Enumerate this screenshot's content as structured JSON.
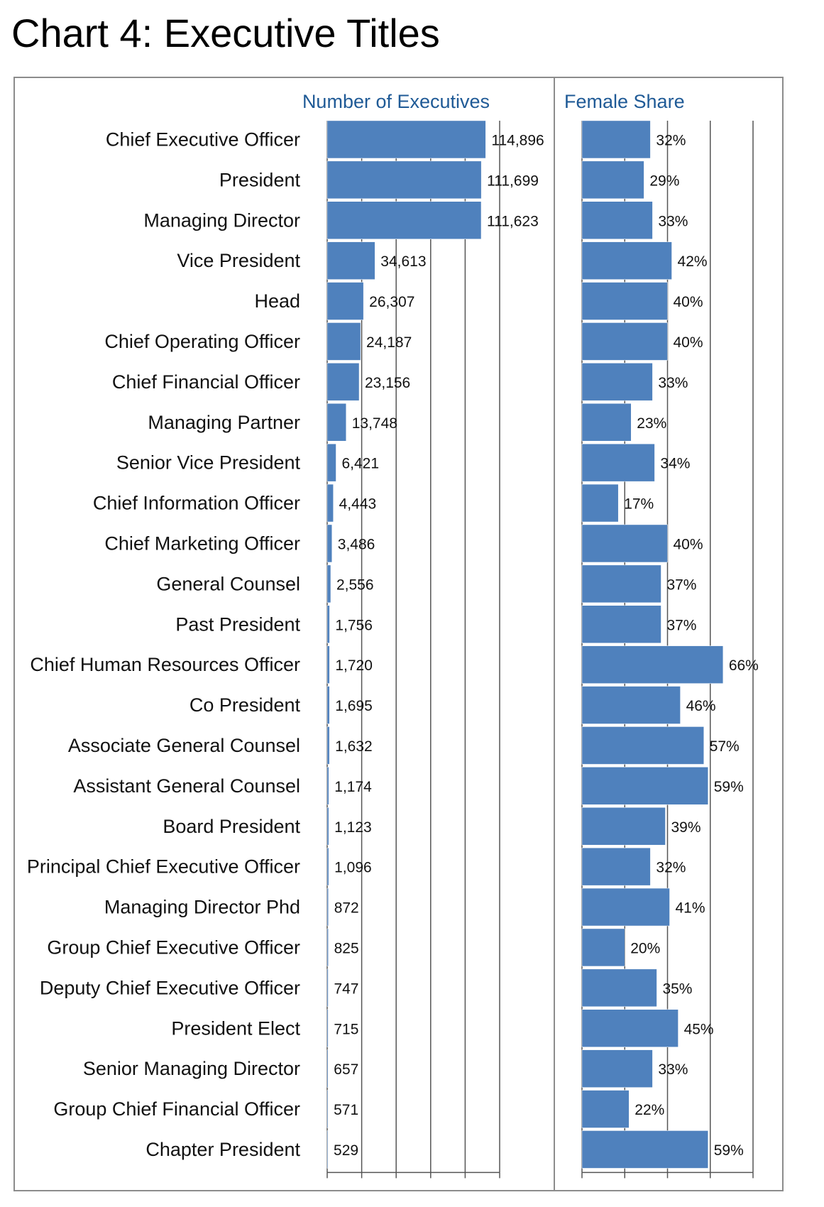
{
  "title": "Chart 4: Executive Titles",
  "chart_data": [
    {
      "type": "bar",
      "orientation": "horizontal",
      "title": "Number of Executives",
      "categories": [
        "Chief Executive Officer",
        "President",
        "Managing Director",
        "Vice President",
        "Head",
        "Chief Operating Officer",
        "Chief Financial Officer",
        "Managing Partner",
        "Senior Vice President",
        "Chief Information Officer",
        "Chief Marketing Officer",
        "General Counsel",
        "Past President",
        "Chief Human Resources Officer",
        "Co President",
        "Associate General Counsel",
        "Assistant General Counsel",
        "Board President",
        "Principal Chief Executive Officer",
        "Managing Director Phd",
        "Group Chief Executive Officer",
        "Deputy Chief Executive Officer",
        "President Elect",
        "Senior Managing Director",
        "Group Chief Financial Officer",
        "Chapter President"
      ],
      "values": [
        114896,
        111699,
        111623,
        34613,
        26307,
        24187,
        23156,
        13748,
        6421,
        4443,
        3486,
        2556,
        1756,
        1720,
        1695,
        1632,
        1174,
        1123,
        1096,
        872,
        825,
        747,
        715,
        657,
        571,
        529
      ],
      "value_labels": [
        "114,896",
        "111,699",
        "111,623",
        "34,613",
        "26,307",
        "24,187",
        "23,156",
        "13,748",
        "6,421",
        "4,443",
        "3,486",
        "2,556",
        "1,756",
        "1,720",
        "1,695",
        "1,632",
        "1,174",
        "1,123",
        "1,096",
        "872",
        "825",
        "747",
        "715",
        "657",
        "571",
        "529"
      ],
      "xlim": [
        0,
        125000
      ],
      "grid": true,
      "bar_color": "#4f81bd"
    },
    {
      "type": "bar",
      "orientation": "horizontal",
      "title": "Female Share",
      "values": [
        32,
        29,
        33,
        42,
        40,
        40,
        33,
        23,
        34,
        17,
        40,
        37,
        37,
        66,
        46,
        57,
        59,
        39,
        32,
        41,
        20,
        35,
        45,
        33,
        22,
        59
      ],
      "value_labels": [
        "32%",
        "29%",
        "33%",
        "42%",
        "40%",
        "40%",
        "33%",
        "23%",
        "34%",
        "17%",
        "40%",
        "37%",
        "37%",
        "66%",
        "46%",
        "57%",
        "59%",
        "39%",
        "32%",
        "41%",
        "20%",
        "35%",
        "45%",
        "33%",
        "22%",
        "59%"
      ],
      "xlim": [
        0,
        80
      ],
      "grid": true,
      "bar_color": "#4f81bd"
    }
  ],
  "colors": {
    "bar": "#4f81bd",
    "header": "#1f5a96",
    "grid": "#555555",
    "frame": "#8c8c8c"
  }
}
